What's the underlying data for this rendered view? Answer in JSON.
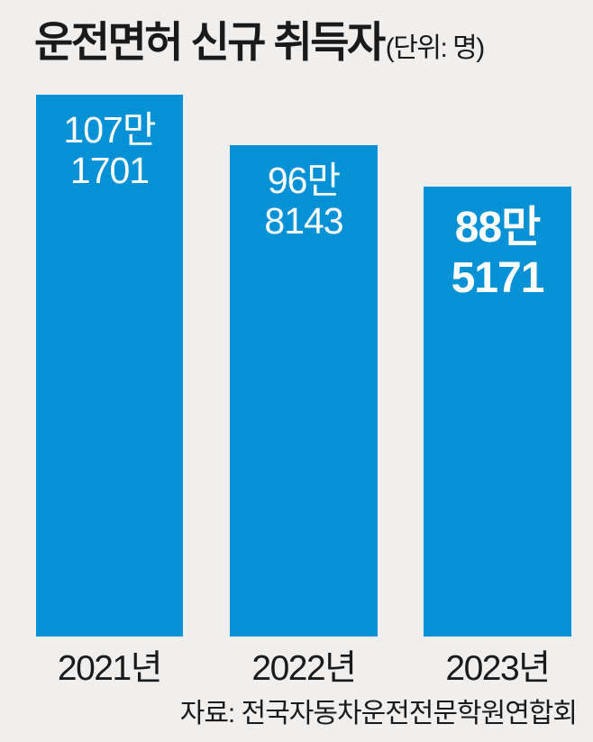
{
  "title": "운전면허 신규 취득자",
  "unit_label": "(단위: 명)",
  "source": "자료: 전국자동차운전전문학원연합회",
  "colors": {
    "background": "#f0efee",
    "bar": "#0591d5",
    "bar_label_text": "#ffffff",
    "text": "#1a1a1a"
  },
  "chart_data": {
    "type": "bar",
    "title": "운전면허 신규 취득자",
    "unit_label": "(단위: 명)",
    "categories": [
      "2021년",
      "2022년",
      "2023년"
    ],
    "values": [
      1071701,
      968143,
      885171
    ],
    "bars": [
      {
        "year": "2021년",
        "value": 1071701,
        "label_top": "107만",
        "label_bottom": "1701",
        "emphasized": false
      },
      {
        "year": "2022년",
        "value": 968143,
        "label_top": "96만",
        "label_bottom": "8143",
        "emphasized": false
      },
      {
        "year": "2023년",
        "value": 885171,
        "label_top": "88만",
        "label_bottom": "5171",
        "emphasized": true
      }
    ],
    "ylim": [
      0,
      1180000
    ],
    "grid": false,
    "legend": "none",
    "source": "자료: 전국자동차운전전문학원연합회",
    "value_label_position": "inside-top",
    "bar_color": "#0591d5"
  }
}
